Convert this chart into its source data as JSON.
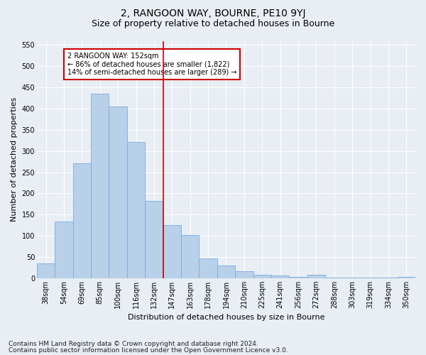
{
  "title": "2, RANGOON WAY, BOURNE, PE10 9YJ",
  "subtitle": "Size of property relative to detached houses in Bourne",
  "xlabel": "Distribution of detached houses by size in Bourne",
  "ylabel": "Number of detached properties",
  "categories": [
    "38sqm",
    "54sqm",
    "69sqm",
    "85sqm",
    "100sqm",
    "116sqm",
    "132sqm",
    "147sqm",
    "163sqm",
    "178sqm",
    "194sqm",
    "210sqm",
    "225sqm",
    "241sqm",
    "256sqm",
    "272sqm",
    "288sqm",
    "303sqm",
    "319sqm",
    "334sqm",
    "350sqm"
  ],
  "bar_heights": [
    35,
    133,
    271,
    435,
    405,
    322,
    182,
    126,
    102,
    46,
    30,
    17,
    8,
    7,
    3,
    8,
    2,
    1,
    2,
    1,
    4
  ],
  "bar_color": "#b8d0e8",
  "bar_edge_color": "#7aabe0",
  "vline_color": "#cc0000",
  "vline_x_index": 7,
  "ylim": [
    0,
    560
  ],
  "yticks": [
    0,
    50,
    100,
    150,
    200,
    250,
    300,
    350,
    400,
    450,
    500,
    550
  ],
  "annotation_text": "2 RANGOON WAY: 152sqm\n← 86% of detached houses are smaller (1,822)\n14% of semi-detached houses are larger (289) →",
  "annotation_box_facecolor": "white",
  "annotation_box_edgecolor": "#cc0000",
  "background_color": "#e8eef4",
  "grid_color": "white",
  "title_fontsize": 10,
  "subtitle_fontsize": 9,
  "xlabel_fontsize": 8,
  "ylabel_fontsize": 8,
  "tick_fontsize": 7,
  "annotation_fontsize": 7,
  "footer_fontsize": 6.5,
  "footer_line1": "Contains HM Land Registry data © Crown copyright and database right 2024.",
  "footer_line2": "Contains public sector information licensed under the Open Government Licence v3.0."
}
